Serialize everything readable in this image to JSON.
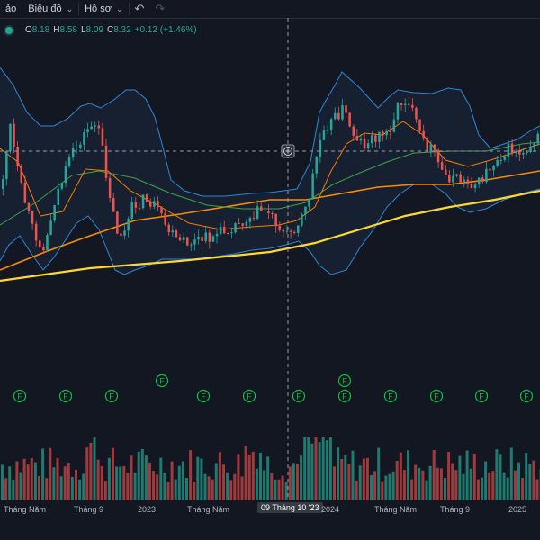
{
  "toolbar": {
    "cut_label": "ảo",
    "charts_label": "Biểu đồ",
    "profile_label": "Hồ sơ",
    "undo_icon": "undo-icon",
    "redo_icon": "redo-icon"
  },
  "legend": {
    "o_label": "O",
    "o_value": "8.18",
    "h_label": "H",
    "h_value": "8.58",
    "l_label": "L",
    "l_value": "8.09",
    "c_label": "C",
    "c_value": "8.32",
    "change": "+0.12 (+1.46%)",
    "color": "#26a69a"
  },
  "colors": {
    "up": "#26a69a",
    "down": "#ef5350",
    "bb": "#2f86d6",
    "ma20": "#f57c00",
    "ma50": "#43a047",
    "ma100": "#fb8c00",
    "ma200": "#fdd835"
  },
  "markers": {
    "label": "F",
    "color": "#0ebd3e"
  },
  "crosshair": {
    "icon": "crosshair-plus-icon",
    "date_label": "09 Tháng 10 '23"
  },
  "axis_labels": [
    "Tháng Năm",
    "Tháng 9",
    "2023",
    "Tháng Năm",
    "2024",
    "Tháng Năm",
    "Tháng 9",
    "2025"
  ]
}
